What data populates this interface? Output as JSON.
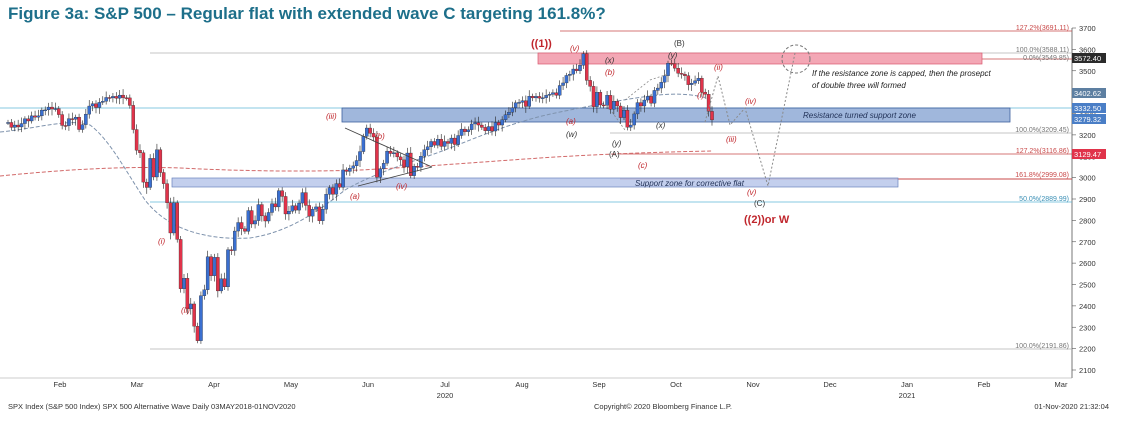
{
  "title": "Figure 3a: S&P 500 – Regular flat with extended wave C targeting 161.8%?",
  "footer": {
    "left": "SPX Index (S&P 500 Index) SPX 500 Alternative Wave  Daily 03MAY2018-01NOV2020",
    "middle": "Copyright© 2020 Bloomberg Finance L.P.",
    "right": "01-Nov-2020 21:32:04"
  },
  "colors": {
    "up_candle": "#3a6fd0",
    "down_candle": "#e0334a",
    "wave_label": "#c0262c",
    "fib_line": "#c94a4a",
    "support_zone": "#b8c7ea",
    "resistance_zone": "#8faad6",
    "top_zone": "#f3a7b5",
    "ma_short": "#7f93ad",
    "ma_long": "#d26a6a",
    "accent": "#1d6f8a"
  },
  "chart_data": {
    "type": "candlestick",
    "x_axis": {
      "months": [
        "Feb",
        "Mar",
        "Apr",
        "May",
        "Jun",
        "Jul",
        "Aug",
        "Sep",
        "Oct",
        "Nov",
        "Dec",
        "Jan",
        "Feb",
        "Mar"
      ],
      "year_labels": [
        {
          "after_month": "Jul",
          "label": "2020"
        },
        {
          "after_month": "Jan",
          "label": "2021"
        }
      ]
    },
    "y_axis": {
      "range": [
        2100,
        3700
      ],
      "ticks": [
        2100,
        2200,
        2300,
        2400,
        2500,
        2600,
        2700,
        2800,
        2900,
        3000,
        3100,
        3200,
        3300,
        3400,
        3500,
        3600,
        3700
      ]
    },
    "candles_start_date": "2020-01-02",
    "closes": [
      3258,
      3235,
      3246,
      3237,
      3253,
      3275,
      3265,
      3289,
      3283,
      3289,
      3316,
      3317,
      3330,
      3321,
      3323,
      3295,
      3244,
      3243,
      3276,
      3273,
      3283,
      3225,
      3248,
      3297,
      3335,
      3346,
      3328,
      3352,
      3357,
      3375,
      3373,
      3380,
      3371,
      3386,
      3374,
      3373,
      3338,
      3225,
      3128,
      3116,
      2979,
      2954,
      3090,
      3003,
      3130,
      3024,
      2972,
      2882,
      2741,
      2882,
      2711,
      2480,
      2529,
      2386,
      2409,
      2305,
      2237,
      2447,
      2475,
      2630,
      2541,
      2627,
      2470,
      2527,
      2489,
      2663,
      2659,
      2750,
      2790,
      2761,
      2749,
      2846,
      2783,
      2799,
      2874,
      2821,
      2797,
      2837,
      2878,
      2863,
      2939,
      2912,
      2830,
      2843,
      2868,
      2848,
      2881,
      2930,
      2870,
      2820,
      2852,
      2863,
      2798,
      2852,
      2922,
      2953,
      2922,
      2972,
      2955,
      3036,
      3029,
      3044,
      3055,
      3080,
      3122,
      3193,
      3232,
      3207,
      3190,
      3002,
      3041,
      3067,
      3124,
      3113,
      3116,
      3097,
      3083,
      3050,
      3115,
      3009,
      3053,
      3048,
      3100,
      3130,
      3144,
      3169,
      3152,
      3180,
      3146,
      3169,
      3160,
      3185,
      3155,
      3197,
      3227,
      3215,
      3224,
      3251,
      3257,
      3246,
      3235,
      3219,
      3239,
      3218,
      3258,
      3246,
      3271,
      3294,
      3306,
      3327,
      3350,
      3352,
      3360,
      3333,
      3381,
      3373,
      3380,
      3372,
      3374,
      3385,
      3390,
      3397,
      3385,
      3431,
      3443,
      3478,
      3484,
      3508,
      3500,
      3526,
      3580,
      3455,
      3427,
      3332,
      3399,
      3340,
      3339,
      3385,
      3320,
      3357,
      3335,
      3281,
      3315,
      3236,
      3246,
      3298,
      3351,
      3335,
      3363,
      3380,
      3348,
      3408,
      3419,
      3446,
      3477,
      3535,
      3534,
      3512,
      3488,
      3484,
      3477,
      3435,
      3442,
      3453,
      3465,
      3400,
      3390,
      3310,
      3270
    ]
  },
  "right_price_tags": [
    {
      "label": "3572.40",
      "color": "#2b2b2b"
    },
    {
      "label": "3402.62",
      "color": "#5d7fa1"
    },
    {
      "label": "3332.50",
      "color": "#4a7ec6"
    },
    {
      "label": "3279.32",
      "color": "#4a7ec6"
    },
    {
      "label": "3129.47",
      "color": "#e0334a"
    }
  ],
  "fib_labels": [
    {
      "label": "127.2%(3691.11)"
    },
    {
      "label": "100.0%(3588.11)"
    },
    {
      "label": "0.0%(3549.85)"
    },
    {
      "label": "100.0%(3209.45)"
    },
    {
      "label": "127.2%(3116.86)"
    },
    {
      "label": "161.8%(2999.08)"
    },
    {
      "label": "50.0%(2889.99)"
    },
    {
      "label": "100.0%(2191.86)"
    }
  ],
  "zones": {
    "resistance": "Resistance turned support zone",
    "support": "Support zone for corrective flat"
  },
  "annotations": {
    "note_line1": "If the resistance zone is capped, then the prosepct",
    "note_line2": "of double three will formed",
    "w1": "((1))",
    "w2": "((2))or W",
    "v_top": "(v)",
    "x_top": "(x)",
    "B": "(B)",
    "y_top": "(y)",
    "ii_red": "(ii)",
    "b_red": "(b)",
    "a_red": "(a)",
    "w": "(w)",
    "x_mid": "(x)",
    "i_red_small": "(i)",
    "iii_red": "(iii)",
    "iv_red": "(iv)",
    "v_red": "(v)",
    "C": "(C)",
    "y_low": "(y)",
    "A": "(A)",
    "c_red": "(c)",
    "iii_left": "(iii)",
    "b_left": "(b)",
    "a_left": "(a)",
    "iv_left": "(iv)",
    "i_left": "(i)",
    "ii_left": "(ii)"
  }
}
